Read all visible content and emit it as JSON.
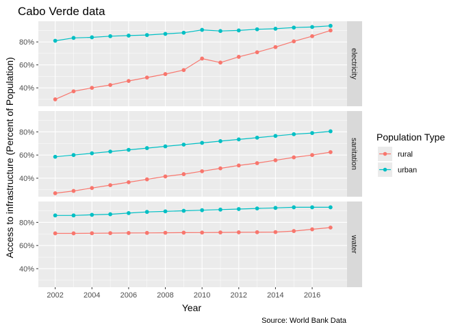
{
  "chart_data": {
    "type": "line",
    "title": "Cabo Verde data",
    "xlabel": "Year",
    "ylabel": "Access to infrastructure (Percent of Population)",
    "caption": "Source: World Bank Data",
    "legend": {
      "title": "Population Type",
      "position": "right",
      "entries": [
        "rural",
        "urban"
      ]
    },
    "colors": {
      "rural": "#F8766D",
      "urban": "#00BFC4"
    },
    "x": [
      2002,
      2003,
      2004,
      2005,
      2006,
      2007,
      2008,
      2009,
      2010,
      2011,
      2012,
      2013,
      2014,
      2015,
      2016,
      2017
    ],
    "x_ticks": [
      2002,
      2004,
      2006,
      2008,
      2010,
      2012,
      2014,
      2016
    ],
    "ylim": [
      24,
      98
    ],
    "y_ticks": [
      40,
      60,
      80
    ],
    "y_tick_labels": [
      "40%",
      "60%",
      "80%"
    ],
    "grid": true,
    "facets": [
      {
        "label": "electricity",
        "series": [
          {
            "name": "rural",
            "values": [
              30,
              37,
              40,
              42.5,
              46,
              49,
              52,
              55.5,
              65.5,
              62,
              67,
              71,
              75.5,
              80.5,
              85,
              90
            ]
          },
          {
            "name": "urban",
            "values": [
              81,
              83.5,
              84,
              85,
              85.5,
              86,
              87,
              88,
              90.5,
              89.5,
              90,
              91,
              91.5,
              92.5,
              93,
              94
            ]
          }
        ]
      },
      {
        "label": "sanitation",
        "series": [
          {
            "name": "rural",
            "values": [
              27,
              29,
              31.5,
              34,
              36.5,
              39,
              41.5,
              43.5,
              46,
              48.5,
              51,
              53,
              55.5,
              58,
              60,
              62.5
            ]
          },
          {
            "name": "urban",
            "values": [
              58.5,
              60,
              61.5,
              63,
              64.5,
              66,
              67.5,
              69,
              70.5,
              72,
              73.5,
              75,
              76.5,
              78,
              79,
              80.5
            ]
          }
        ]
      },
      {
        "label": "water",
        "series": [
          {
            "name": "rural",
            "values": [
              70.5,
              70.5,
              70.6,
              70.7,
              70.8,
              70.9,
              71,
              71.1,
              71.2,
              71.3,
              71.4,
              71.5,
              71.6,
              72.5,
              74,
              75.5
            ]
          },
          {
            "name": "urban",
            "values": [
              86,
              86,
              86.5,
              87,
              88,
              89,
              89.5,
              90,
              90.5,
              91,
              91.5,
              92,
              92.5,
              93,
              93,
              93
            ]
          }
        ]
      }
    ]
  }
}
